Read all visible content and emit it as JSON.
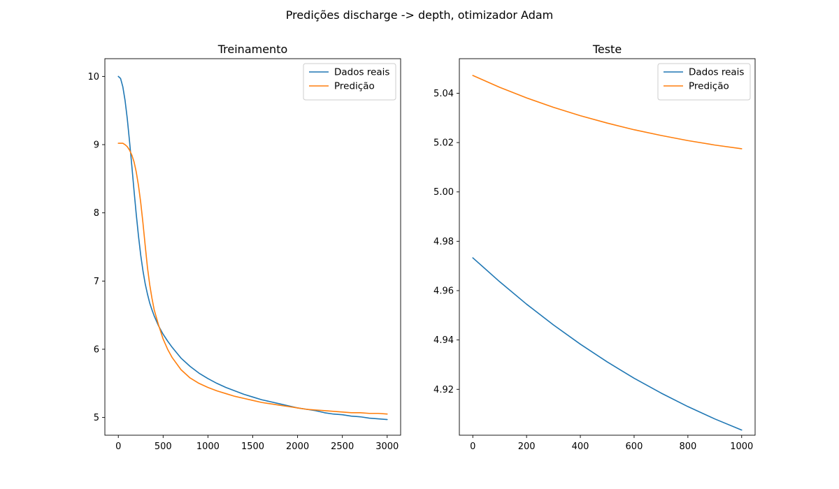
{
  "figure": {
    "suptitle": "Predições discharge -> depth, otimizador Adam"
  },
  "chart_data": [
    {
      "type": "line",
      "title": "Treinamento",
      "xlabel": "",
      "ylabel": "",
      "xlim": [
        -150,
        3150
      ],
      "ylim": [
        4.74,
        10.26
      ],
      "xticks": [
        0,
        500,
        1000,
        1500,
        2000,
        2500,
        3000
      ],
      "yticks": [
        5,
        6,
        7,
        8,
        9,
        10
      ],
      "grid": false,
      "legend_position": "upper-right",
      "series": [
        {
          "name": "Dados reais",
          "color": "#1f77b4",
          "x": [
            0,
            25,
            50,
            75,
            100,
            125,
            150,
            175,
            200,
            225,
            250,
            275,
            300,
            325,
            350,
            375,
            400,
            450,
            500,
            550,
            600,
            700,
            800,
            900,
            1000,
            1100,
            1200,
            1300,
            1400,
            1500,
            1600,
            1700,
            1800,
            1900,
            2000,
            2100,
            2200,
            2300,
            2400,
            2500,
            2600,
            2700,
            2800,
            2900,
            3000
          ],
          "y": [
            10.0,
            9.97,
            9.85,
            9.65,
            9.38,
            9.05,
            8.7,
            8.33,
            7.98,
            7.66,
            7.38,
            7.15,
            6.96,
            6.81,
            6.68,
            6.58,
            6.49,
            6.34,
            6.22,
            6.12,
            6.03,
            5.87,
            5.75,
            5.65,
            5.57,
            5.5,
            5.44,
            5.39,
            5.34,
            5.3,
            5.26,
            5.23,
            5.2,
            5.17,
            5.14,
            5.12,
            5.1,
            5.07,
            5.05,
            5.04,
            5.02,
            5.01,
            4.99,
            4.98,
            4.97
          ]
        },
        {
          "name": "Predição",
          "color": "#ff7f0e",
          "x": [
            0,
            25,
            50,
            75,
            100,
            125,
            150,
            175,
            200,
            225,
            250,
            275,
            300,
            325,
            350,
            375,
            400,
            450,
            500,
            550,
            600,
            700,
            800,
            900,
            1000,
            1100,
            1200,
            1300,
            1400,
            1500,
            1600,
            1700,
            1800,
            1900,
            2000,
            2100,
            2200,
            2300,
            2400,
            2500,
            2600,
            2700,
            2800,
            2900,
            3000
          ],
          "y": [
            9.02,
            9.02,
            9.02,
            9.0,
            8.97,
            8.92,
            8.85,
            8.75,
            8.6,
            8.4,
            8.15,
            7.85,
            7.52,
            7.2,
            6.95,
            6.75,
            6.58,
            6.35,
            6.15,
            6.0,
            5.88,
            5.7,
            5.58,
            5.5,
            5.44,
            5.39,
            5.35,
            5.31,
            5.28,
            5.25,
            5.22,
            5.2,
            5.18,
            5.16,
            5.14,
            5.12,
            5.11,
            5.1,
            5.09,
            5.08,
            5.07,
            5.07,
            5.06,
            5.06,
            5.05
          ]
        }
      ]
    },
    {
      "type": "line",
      "title": "Teste",
      "xlabel": "",
      "ylabel": "",
      "xlim": [
        -50,
        1050
      ],
      "ylim": [
        4.9014,
        5.054
      ],
      "xticks": [
        0,
        200,
        400,
        600,
        800,
        1000
      ],
      "yticks": [
        4.92,
        4.94,
        4.96,
        4.98,
        5.0,
        5.02,
        5.04
      ],
      "ytick_labels": [
        "4.92",
        "4.94",
        "4.96",
        "4.98",
        "5.00",
        "5.02",
        "5.04"
      ],
      "grid": false,
      "legend_position": "upper-right",
      "series": [
        {
          "name": "Dados reais",
          "color": "#1f77b4",
          "x": [
            0,
            100,
            200,
            300,
            400,
            500,
            600,
            700,
            800,
            900,
            1000
          ],
          "y": [
            4.9733,
            4.9636,
            4.9545,
            4.9461,
            4.9383,
            4.9311,
            4.9245,
            4.9185,
            4.913,
            4.908,
            4.9035
          ]
        },
        {
          "name": "Predição",
          "color": "#ff7f0e",
          "x": [
            0,
            100,
            200,
            300,
            400,
            500,
            600,
            700,
            800,
            900,
            1000
          ],
          "y": [
            5.0472,
            5.0424,
            5.0381,
            5.0343,
            5.0309,
            5.0279,
            5.0252,
            5.0229,
            5.0208,
            5.019,
            5.0175
          ]
        }
      ]
    }
  ]
}
